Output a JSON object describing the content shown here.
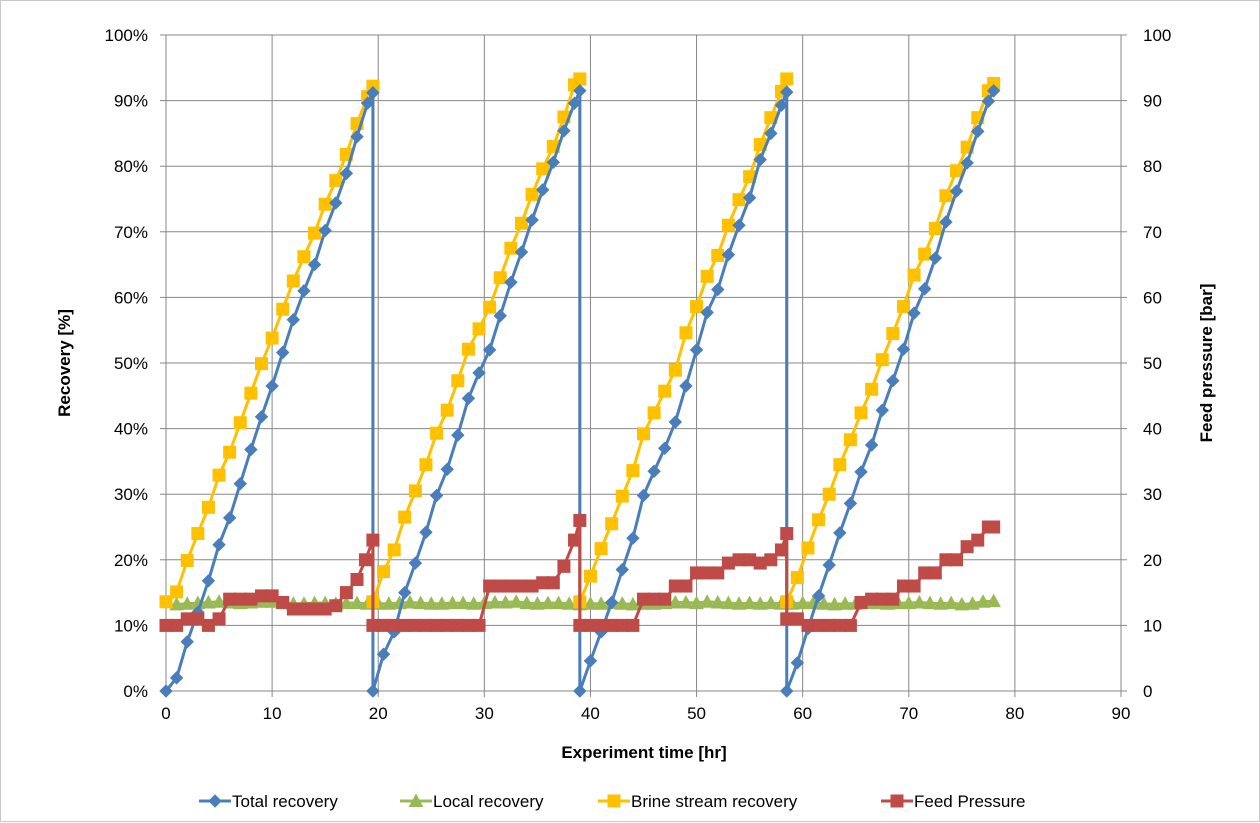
{
  "chart_data": {
    "type": "line",
    "title": "",
    "xlabel": "Experiment time [hr]",
    "ylabel": "Recovery [%]",
    "y2label": "Feed pressure [bar]",
    "xlim": [
      0,
      90
    ],
    "ylim": [
      0,
      100
    ],
    "y2lim": [
      0,
      100
    ],
    "x_ticks": [
      "0",
      "10",
      "20",
      "30",
      "40",
      "50",
      "60",
      "70",
      "80",
      "90"
    ],
    "y_ticks": [
      "0%",
      "10%",
      "20%",
      "30%",
      "40%",
      "50%",
      "60%",
      "70%",
      "80%",
      "90%",
      "100%"
    ],
    "y2_ticks": [
      "0",
      "10",
      "20",
      "30",
      "40",
      "50",
      "60",
      "70",
      "80",
      "90",
      "100"
    ],
    "grid": true,
    "legend_position": "bottom",
    "series": [
      {
        "name": "Total recovery",
        "axis": "left",
        "color": "#4a7ebb",
        "marker": "diamond",
        "x": [
          0,
          1,
          2,
          3,
          4,
          5,
          6,
          7,
          8,
          9,
          10,
          11,
          12,
          13,
          14,
          15,
          16,
          17,
          18,
          19,
          19.5,
          19.5,
          20.5,
          21.5,
          22.5,
          23.5,
          24.5,
          25.5,
          26.5,
          27.5,
          28.5,
          29.5,
          30.5,
          31.5,
          32.5,
          33.5,
          34.5,
          35.5,
          36.5,
          37.5,
          38.5,
          39,
          39,
          40,
          41,
          42,
          43,
          44,
          45,
          46,
          47,
          48,
          49,
          50,
          51,
          52,
          53,
          54,
          55,
          56,
          57,
          58,
          58.5,
          58.5,
          59.5,
          60.5,
          61.5,
          62.5,
          63.5,
          64.5,
          65.5,
          66.5,
          67.5,
          68.5,
          69.5,
          70.5,
          71.5,
          72.5,
          73.5,
          74.5,
          75.5,
          76.5,
          77.5,
          78
        ],
        "y": [
          0,
          2,
          7.5,
          12,
          16.8,
          22.3,
          26.4,
          31.6,
          36.8,
          41.8,
          46.5,
          51.6,
          56.6,
          61,
          65,
          70.2,
          74.4,
          78.9,
          84.5,
          89.6,
          91.2,
          0,
          5.6,
          9,
          15,
          19.5,
          24.2,
          29.8,
          33.8,
          39,
          44.6,
          48.5,
          52,
          57.2,
          62.3,
          66.9,
          71.8,
          76.4,
          80.6,
          85.4,
          89.6,
          91.5,
          0,
          4.6,
          9,
          13.5,
          18.5,
          23.3,
          29.8,
          33.5,
          37,
          41,
          46.5,
          52,
          57.7,
          61.2,
          66.5,
          71,
          75.2,
          81,
          85,
          89.3,
          91.3,
          0,
          4.3,
          9.5,
          14.5,
          19.2,
          24.1,
          28.6,
          33.4,
          37.5,
          42.8,
          47.3,
          52.1,
          57.6,
          61.3,
          66,
          71.5,
          76.2,
          80.5,
          85.3,
          89.9,
          91.5
        ]
      },
      {
        "name": "Local recovery",
        "axis": "left",
        "color": "#98b954",
        "marker": "triangle",
        "x": [
          1,
          2,
          3,
          4,
          5,
          6,
          7,
          8,
          9,
          10,
          11,
          12,
          13,
          14,
          15,
          16,
          17,
          18,
          19,
          20,
          21,
          22,
          23,
          24,
          25,
          26,
          27,
          28,
          29,
          30,
          31,
          32,
          33,
          34,
          35,
          36,
          37,
          38,
          39,
          40,
          41,
          42,
          43,
          44,
          45,
          46,
          47,
          48,
          49,
          50,
          51,
          52,
          53,
          54,
          55,
          56,
          57,
          58,
          59,
          60,
          61,
          62,
          63,
          64,
          65,
          66,
          67,
          68,
          69,
          70,
          71,
          72,
          73,
          74,
          75,
          76,
          77,
          78
        ],
        "y": [
          13.2,
          13.3,
          13.4,
          13.5,
          13.6,
          13.5,
          13.4,
          13.5,
          13.6,
          13.6,
          13.4,
          13.3,
          13.3,
          13.4,
          13.4,
          13.3,
          13.4,
          13.4,
          13.3,
          13.3,
          13.3,
          13.4,
          13.5,
          13.4,
          13.3,
          13.3,
          13.4,
          13.4,
          13.3,
          13.4,
          13.5,
          13.5,
          13.6,
          13.4,
          13.3,
          13.4,
          13.4,
          13.3,
          13.2,
          13.3,
          13.3,
          13.4,
          13.3,
          13.2,
          13.3,
          13.3,
          13.4,
          13.5,
          13.5,
          13.4,
          13.6,
          13.5,
          13.4,
          13.3,
          13.4,
          13.3,
          13.4,
          13.3,
          13.3,
          13.4,
          13.4,
          13.3,
          13.2,
          13.3,
          13.3,
          13.4,
          13.4,
          13.3,
          13.4,
          13.4,
          13.5,
          13.4,
          13.3,
          13.4,
          13.2,
          13.3,
          13.6,
          13.7
        ]
      },
      {
        "name": "Brine stream recovery",
        "axis": "left",
        "color": "#ffc000",
        "marker": "square",
        "x": [
          0,
          1,
          2,
          3,
          4,
          5,
          6,
          7,
          8,
          9,
          10,
          11,
          12,
          13,
          14,
          15,
          16,
          17,
          18,
          19,
          19.5,
          19.5,
          20.5,
          21.5,
          22.5,
          23.5,
          24.5,
          25.5,
          26.5,
          27.5,
          28.5,
          29.5,
          30.5,
          31.5,
          32.5,
          33.5,
          34.5,
          35.5,
          36.5,
          37.5,
          38.5,
          39,
          39,
          40,
          41,
          42,
          43,
          44,
          45,
          46,
          47,
          48,
          49,
          50,
          51,
          52,
          53,
          54,
          55,
          56,
          57,
          58,
          58.5,
          58.5,
          59.5,
          60.5,
          61.5,
          62.5,
          63.5,
          64.5,
          65.5,
          66.5,
          67.5,
          68.5,
          69.5,
          70.5,
          71.5,
          72.5,
          73.5,
          74.5,
          75.5,
          76.5,
          77.5,
          78
        ],
        "y": [
          13.6,
          15.1,
          19.9,
          24,
          28,
          32.9,
          36.4,
          40.9,
          45.4,
          49.9,
          53.8,
          58.2,
          62.5,
          66.2,
          69.8,
          74.2,
          77.8,
          81.8,
          86.5,
          90.6,
          92.2,
          13.6,
          18.2,
          21.5,
          26.5,
          30.5,
          34.5,
          39.3,
          42.8,
          47.3,
          52.1,
          55.2,
          58.5,
          63,
          67.5,
          71.3,
          75.7,
          79.6,
          83,
          87.5,
          92.4,
          93.3,
          13.6,
          17.5,
          21.7,
          25.5,
          29.7,
          33.6,
          39.2,
          42.4,
          45.7,
          48.9,
          54.6,
          58.6,
          63.2,
          66.4,
          71,
          74.9,
          78.4,
          83.3,
          87.4,
          91.4,
          93.3,
          13.6,
          17.3,
          21.8,
          26.1,
          30,
          34.5,
          38.3,
          42.4,
          46,
          50.5,
          54.5,
          58.6,
          63.4,
          66.6,
          70.5,
          75.5,
          79.3,
          82.9,
          87.4,
          91.5,
          92.6
        ]
      },
      {
        "name": "Feed Pressure",
        "axis": "right",
        "color": "#be4b48",
        "marker": "square",
        "x": [
          0,
          1,
          2,
          3,
          4,
          5,
          6,
          7,
          8,
          9,
          10,
          11,
          12,
          13,
          14,
          15,
          16,
          17,
          18,
          18.8,
          19.5,
          19.5,
          20.5,
          21.5,
          22.5,
          23.5,
          24.5,
          25.5,
          26.5,
          27.5,
          28.5,
          29.5,
          30.5,
          31.5,
          32.5,
          33.5,
          34.5,
          35.5,
          36.5,
          37.5,
          38.5,
          39,
          39,
          40,
          41,
          42,
          43,
          44,
          45,
          46,
          47,
          48,
          49,
          50,
          51,
          52,
          53,
          54,
          55,
          56,
          57,
          58,
          58.5,
          58.5,
          59.5,
          60.5,
          61.5,
          62.5,
          63.5,
          64.5,
          65.5,
          66.5,
          67.5,
          68.5,
          69.5,
          70.5,
          71.5,
          72.5,
          73.5,
          74.5,
          75.5,
          76.5,
          77.5,
          78
        ],
        "y": [
          10,
          10,
          11,
          11,
          10,
          11,
          14,
          14,
          14,
          14.5,
          14.5,
          13.5,
          12.5,
          12.5,
          12.5,
          12.5,
          13,
          15,
          17,
          20,
          23,
          10,
          10,
          10,
          10,
          10,
          10,
          10,
          10,
          10,
          10,
          10,
          16,
          16,
          16,
          16,
          16,
          16.5,
          16.5,
          19,
          23,
          26,
          10,
          10,
          10,
          10,
          10,
          10,
          14,
          14,
          14,
          16,
          16,
          18,
          18,
          18,
          19.5,
          20,
          20,
          19.5,
          20,
          21.5,
          24,
          11,
          11,
          10,
          10,
          10,
          10,
          10,
          13.5,
          14,
          14,
          14,
          16,
          16,
          18,
          18,
          20,
          20,
          22,
          23,
          25,
          25
        ]
      }
    ]
  }
}
